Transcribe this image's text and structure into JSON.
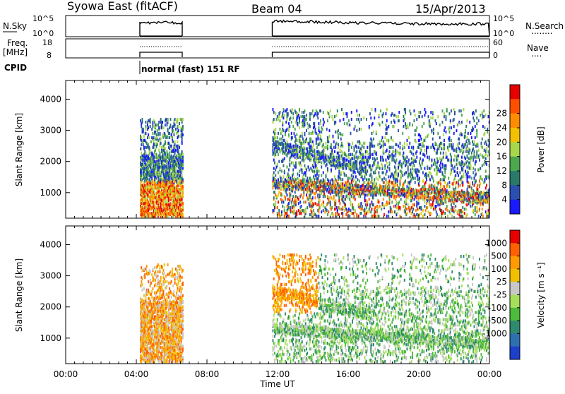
{
  "header": {
    "station": "Syowa East (fitACF)",
    "beam": "Beam 04",
    "date": "15/Apr/2013"
  },
  "noise_panel": {
    "left_label": "N.Sky",
    "left_ticks": [
      "10^5",
      "10^0"
    ],
    "right_ticks": [
      "10^5",
      "10^0"
    ],
    "right_label": "N.Search",
    "right_legend_dots": "........",
    "segments_hours": [
      [
        4.2,
        6.6
      ],
      [
        11.7,
        24.0
      ]
    ]
  },
  "freq_panel": {
    "left_label_1": "Freq.",
    "left_label_2": "[MHz]",
    "left_ticks": [
      "18",
      "8"
    ],
    "right_ticks": [
      "60",
      "0"
    ],
    "right_label": "Nave",
    "right_legend_dots": "....",
    "segments_hours": [
      [
        4.2,
        6.6
      ],
      [
        11.7,
        24.0
      ]
    ]
  },
  "cpid": {
    "label": "CPID",
    "mode_text": "normal (fast) 151 RF",
    "start_hour": 4.2
  },
  "chart_data": [
    {
      "type": "heatmap",
      "name": "power",
      "ylabel": "Slant Range [km]",
      "x_ticks": [
        "00:00",
        "04:00",
        "08:00",
        "12:00",
        "16:00",
        "20:00",
        "00:00"
      ],
      "xlim_hours": [
        0,
        24
      ],
      "ylim": [
        180,
        4600
      ],
      "y_ticks": [
        1000,
        2000,
        3000,
        4000
      ],
      "colorbar": {
        "label": "Power [dB]",
        "ticks": [
          "4",
          "8",
          "12",
          "16",
          "20",
          "24",
          "28"
        ],
        "colors": [
          "#1a1aff",
          "#2b4fb0",
          "#2a7a6a",
          "#4ca84c",
          "#a8d84a",
          "#f2c000",
          "#ff8c00",
          "#ff5000",
          "#e60000"
        ]
      },
      "data_regions": [
        {
          "t": [
            4.2,
            6.6
          ],
          "r": [
            250,
            3400
          ],
          "level": "mixed"
        },
        {
          "t": [
            11.7,
            24.0
          ],
          "r": [
            250,
            3700
          ],
          "level": "mixed"
        }
      ]
    },
    {
      "type": "heatmap",
      "name": "velocity",
      "ylabel": "Slant Range [km]",
      "x_ticks": [
        "00:00",
        "04:00",
        "08:00",
        "12:00",
        "16:00",
        "20:00",
        "00:00"
      ],
      "xlabel": "Time UT",
      "xlim_hours": [
        0,
        24
      ],
      "ylim": [
        180,
        4600
      ],
      "y_ticks": [
        1000,
        2000,
        3000,
        4000
      ],
      "colorbar": {
        "label": "Velocity [m s⁻¹]",
        "ticks": [
          "1000",
          "500",
          "100",
          "25",
          "-25",
          "-100",
          "-500",
          "-1000"
        ],
        "colors": [
          "#1c3fcc",
          "#2e6fb0",
          "#2e8a6e",
          "#4dbb3c",
          "#a6e05a",
          "#c8c8c8",
          "#f0c000",
          "#ff9a00",
          "#ff6000",
          "#e60000"
        ]
      },
      "data_regions": [
        {
          "t": [
            4.2,
            6.6
          ],
          "r": [
            250,
            3400
          ],
          "level": "mixed"
        },
        {
          "t": [
            11.7,
            24.0
          ],
          "r": [
            250,
            3700
          ],
          "level": "mixed"
        }
      ]
    }
  ]
}
